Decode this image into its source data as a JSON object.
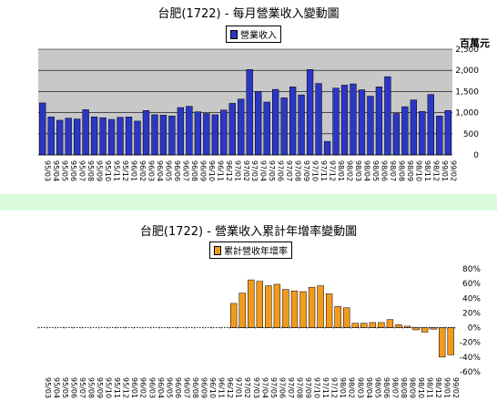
{
  "top_chart": {
    "title": "台肥(1722) - 每月營業收入變動圖",
    "legend": "營業收入",
    "unit": "百萬元"
  },
  "bottom_chart": {
    "title": "台肥(1722) -  營業收入累計年增率變動圖",
    "legend": "累計營收年增率"
  },
  "colors": {
    "revenue_bar": "#2b37c4",
    "growth_bar": "#f39a1c",
    "plot_bg": "#c8c8c8",
    "page_bg": "#dcfadc"
  },
  "chart_data": [
    {
      "type": "bar",
      "title": "台肥(1722) - 每月營業收入變動圖",
      "ylabel": "百萬元",
      "ylim": [
        0,
        2500
      ],
      "yticks": [
        0,
        500,
        1000,
        1500,
        2000,
        2500
      ],
      "ytick_labels": [
        "0",
        "500",
        "1,000",
        "1,500",
        "2,000",
        "2,500"
      ],
      "legend_position": "top",
      "grid": true,
      "categories": [
        "95/03",
        "95/04",
        "95/05",
        "95/06",
        "95/07",
        "95/08",
        "95/09",
        "95/10",
        "95/11",
        "95/12",
        "96/01",
        "96/02",
        "96/03",
        "96/04",
        "96/05",
        "96/06",
        "96/07",
        "96/08",
        "96/09",
        "96/10",
        "96/11",
        "96/12",
        "97/01",
        "97/02",
        "97/03",
        "97/04",
        "97/05",
        "97/06",
        "97/07",
        "97/08",
        "97/09",
        "97/10",
        "97/11",
        "97/12",
        "98/01",
        "98/02",
        "98/03",
        "98/04",
        "98/05",
        "98/06",
        "98/07",
        "98/08",
        "98/09",
        "98/10",
        "98/11",
        "98/12",
        "99/01",
        "99/02"
      ],
      "series": [
        {
          "name": "營業收入",
          "values": [
            1230,
            900,
            820,
            870,
            850,
            1070,
            900,
            880,
            840,
            890,
            900,
            800,
            1050,
            950,
            940,
            920,
            1120,
            1150,
            1020,
            980,
            950,
            1060,
            1220,
            1320,
            2020,
            1500,
            1250,
            1550,
            1350,
            1610,
            1420,
            2020,
            1690,
            320,
            1580,
            1650,
            1680,
            1540,
            1390,
            1610,
            1850,
            980,
            1140,
            1300,
            1030,
            1430,
            920,
            1050
          ]
        }
      ]
    },
    {
      "type": "bar",
      "title": "台肥(1722) -  營業收入累計年增率變動圖",
      "ylim": [
        -60,
        80
      ],
      "yticks": [
        -60,
        -40,
        -20,
        0,
        20,
        40,
        60,
        80
      ],
      "ytick_labels": [
        "-60%",
        "-40%",
        "-20%",
        "0%",
        "20%",
        "40%",
        "60%",
        "80%"
      ],
      "legend_position": "top",
      "grid": false,
      "categories": [
        "95/03",
        "95/04",
        "95/05",
        "95/06",
        "95/07",
        "95/08",
        "95/09",
        "95/10",
        "95/11",
        "95/12",
        "96/01",
        "96/02",
        "96/03",
        "96/04",
        "96/05",
        "96/06",
        "96/07",
        "96/08",
        "96/09",
        "96/10",
        "96/11",
        "96/12",
        "97/01",
        "97/02",
        "97/03",
        "97/04",
        "97/05",
        "97/06",
        "97/07",
        "97/08",
        "97/09",
        "97/10",
        "97/11",
        "97/12",
        "98/01",
        "98/02",
        "98/03",
        "98/04",
        "98/05",
        "98/06",
        "98/07",
        "98/08",
        "98/09",
        "98/10",
        "98/11",
        "98/12",
        "99/01",
        "99/02"
      ],
      "series": [
        {
          "name": "累計營收年增率",
          "values": [
            0,
            0,
            0,
            0,
            0,
            0,
            0,
            0,
            0,
            0,
            0,
            0,
            0,
            0,
            0,
            0,
            0,
            0,
            0,
            0,
            0,
            0,
            33,
            47,
            65,
            63,
            57,
            59,
            52,
            50,
            49,
            55,
            57,
            46,
            29,
            27,
            6,
            6,
            7,
            7,
            11,
            4,
            2,
            -3,
            -6,
            -2,
            -40,
            -37
          ]
        }
      ]
    }
  ]
}
